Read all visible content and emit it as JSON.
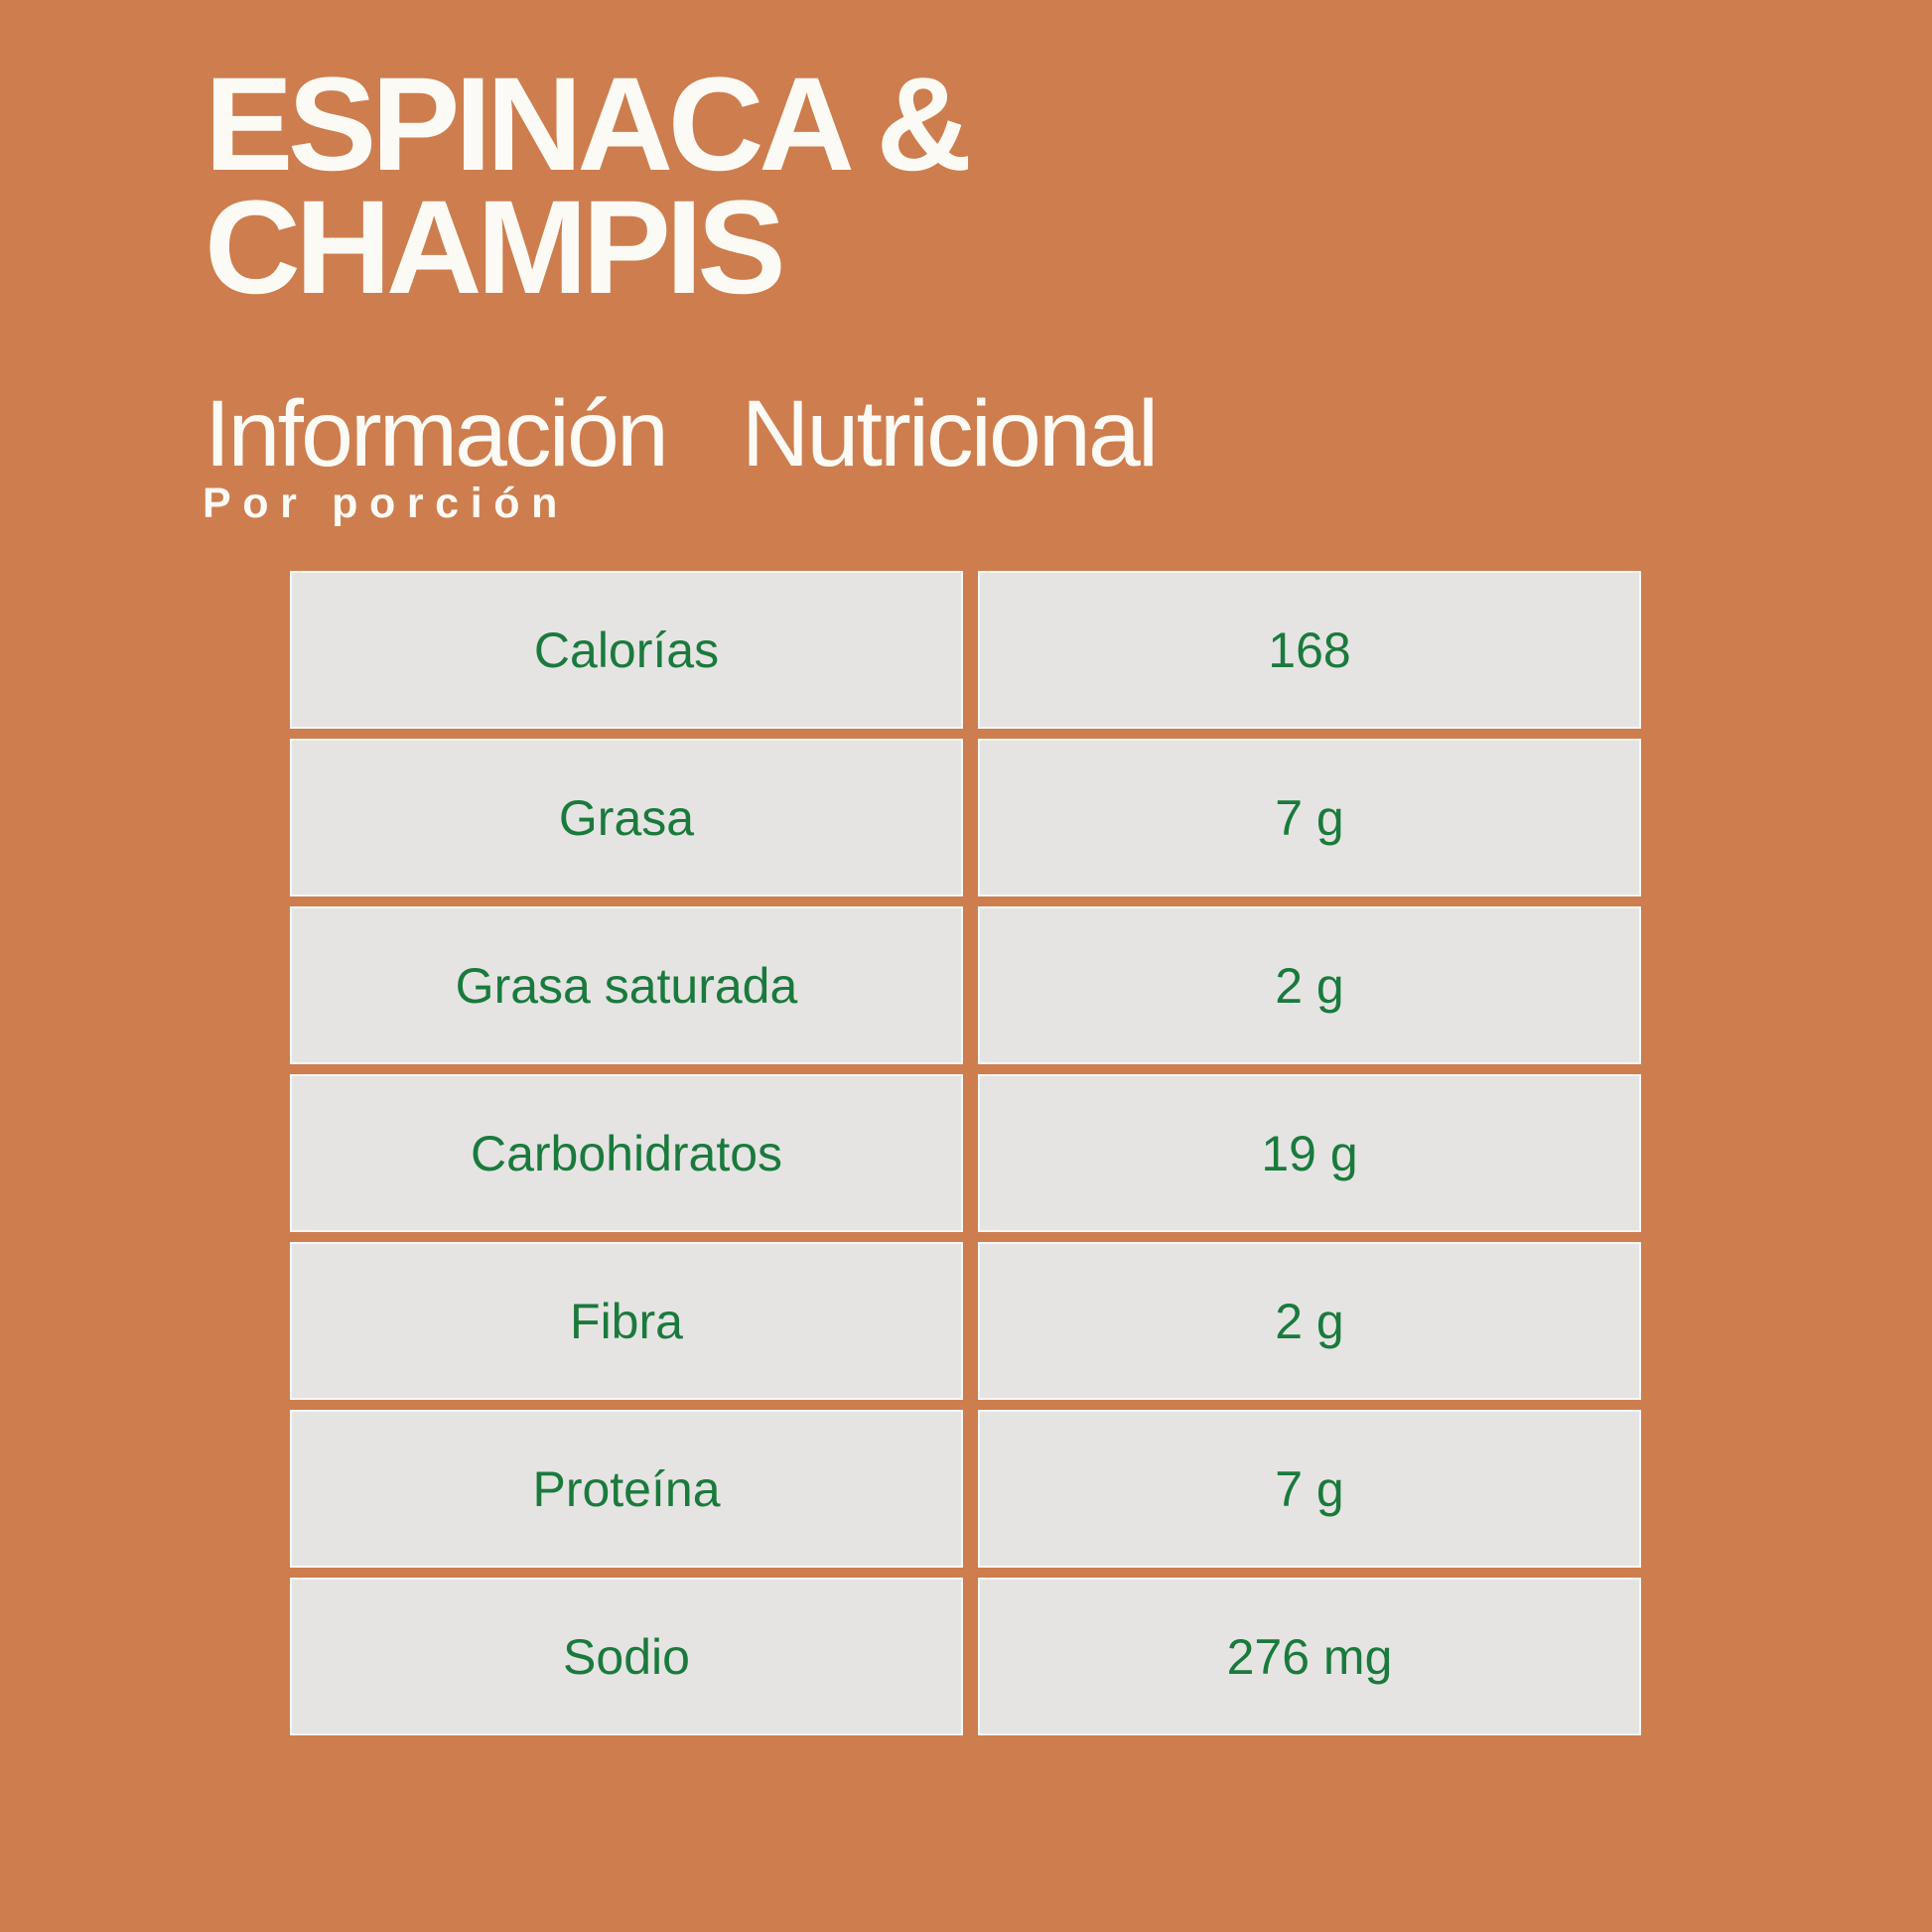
{
  "page": {
    "background_color": "#ce7d4e",
    "cell_color": "#e5e4e3",
    "text_green": "#1a7a3c",
    "text_white": "#fcfaf5"
  },
  "header": {
    "title_line1": "ESPINACA &",
    "title_line2": "CHAMPIS",
    "subtitle": "Información Nutricional",
    "portion_label": "Por porción"
  },
  "nutrition_table": {
    "rows": [
      {
        "label": "Calorías",
        "value": "168"
      },
      {
        "label": "Grasa",
        "value": "7 g"
      },
      {
        "label": "Grasa saturada",
        "value": "2 g"
      },
      {
        "label": "Carbohidratos",
        "value": "19 g"
      },
      {
        "label": "Fibra",
        "value": "2 g"
      },
      {
        "label": "Proteína",
        "value": "7 g"
      },
      {
        "label": "Sodio",
        "value": "276 mg"
      }
    ]
  }
}
